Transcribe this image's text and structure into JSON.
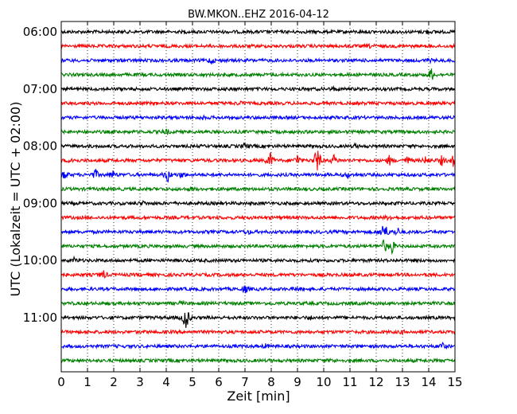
{
  "chart_data": {
    "type": "line",
    "title": "BW.MKON..EHZ 2016-04-12",
    "xlabel": "Zeit  [min]",
    "ylabel": "UTC (Lokalzeit = UTC + 02:00)",
    "xlim": [
      0,
      15
    ],
    "x_ticks": [
      "0",
      "1",
      "2",
      "3",
      "4",
      "5",
      "6",
      "7",
      "8",
      "9",
      "10",
      "11",
      "12",
      "13",
      "14",
      "15"
    ],
    "y_tick_labels": [
      "06:00",
      "07:00",
      "08:00",
      "09:00",
      "10:00",
      "11:00"
    ],
    "grid": "vertical dotted",
    "trace_interval_minutes": 15,
    "trace_color_cycle": [
      "#000000",
      "#ff0000",
      "#0000ff",
      "#008000"
    ],
    "series": [
      {
        "start": "06:00",
        "events": [
          {
            "t": 13.9,
            "amp": 0.25
          }
        ]
      },
      {
        "start": "06:15",
        "events": [
          {
            "t": 11.8,
            "amp": 0.2
          }
        ]
      },
      {
        "start": "06:30",
        "events": [
          {
            "t": 5.7,
            "amp": 0.5
          },
          {
            "t": 14.0,
            "amp": 0.2
          }
        ]
      },
      {
        "start": "06:45",
        "events": [
          {
            "t": 14.1,
            "amp": 0.9
          }
        ]
      },
      {
        "start": "07:00",
        "events": [
          {
            "t": 10.4,
            "amp": 0.2
          }
        ]
      },
      {
        "start": "07:15",
        "events": [
          {
            "t": 6.8,
            "amp": 0.2
          }
        ]
      },
      {
        "start": "07:30",
        "events": [
          {
            "t": 5.4,
            "amp": 0.15
          }
        ]
      },
      {
        "start": "07:45",
        "events": [
          {
            "t": 4.0,
            "amp": 0.35
          }
        ]
      },
      {
        "start": "08:00",
        "events": [
          {
            "t": 7.0,
            "amp": 0.35
          },
          {
            "t": 11.2,
            "amp": 0.2
          }
        ]
      },
      {
        "start": "08:15",
        "events": [
          {
            "t": 0.4,
            "amp": 0.4
          },
          {
            "t": 7.95,
            "amp": 1.2
          },
          {
            "t": 9.0,
            "amp": 0.8
          },
          {
            "t": 9.75,
            "amp": 2.2
          },
          {
            "t": 10.4,
            "amp": 0.7
          },
          {
            "t": 12.5,
            "amp": 0.6
          },
          {
            "t": 13.2,
            "amp": 0.5
          },
          {
            "t": 13.9,
            "amp": 0.5
          },
          {
            "t": 14.5,
            "amp": 0.6
          },
          {
            "t": 14.95,
            "amp": 0.8
          }
        ]
      },
      {
        "start": "08:30",
        "events": [
          {
            "t": 0.1,
            "amp": 0.7
          },
          {
            "t": 1.3,
            "amp": 0.7
          },
          {
            "t": 1.95,
            "amp": 0.6
          },
          {
            "t": 4.05,
            "amp": 1.0
          },
          {
            "t": 4.6,
            "amp": 0.4
          },
          {
            "t": 10.9,
            "amp": 0.4
          }
        ]
      },
      {
        "start": "08:45",
        "events": [
          {
            "t": 5.0,
            "amp": 0.2
          }
        ]
      },
      {
        "start": "09:00",
        "events": [
          {
            "t": 3.1,
            "amp": 0.25
          }
        ]
      },
      {
        "start": "09:15",
        "events": [
          {
            "t": 12.5,
            "amp": 0.3
          }
        ]
      },
      {
        "start": "09:30",
        "events": [
          {
            "t": 7.1,
            "amp": 0.3
          },
          {
            "t": 12.3,
            "amp": 1.8
          },
          {
            "t": 12.8,
            "amp": 0.6
          }
        ]
      },
      {
        "start": "09:45",
        "events": [
          {
            "t": 12.3,
            "amp": 0.9
          },
          {
            "t": 12.6,
            "amp": 0.9
          }
        ]
      },
      {
        "start": "10:00",
        "events": [
          {
            "t": 0.5,
            "amp": 0.3
          }
        ]
      },
      {
        "start": "10:15",
        "events": [
          {
            "t": 1.6,
            "amp": 0.6
          }
        ]
      },
      {
        "start": "10:30",
        "events": [
          {
            "t": 7.0,
            "amp": 0.6
          },
          {
            "t": 9.0,
            "amp": 0.2
          }
        ]
      },
      {
        "start": "10:45",
        "events": [
          {
            "t": 4.6,
            "amp": 0.2
          }
        ]
      },
      {
        "start": "11:00",
        "events": [
          {
            "t": 4.75,
            "amp": 2.0
          },
          {
            "t": 9.5,
            "amp": 0.2
          }
        ]
      },
      {
        "start": "11:15",
        "events": [
          {
            "t": 13.0,
            "amp": 0.15
          }
        ]
      },
      {
        "start": "11:30",
        "events": [
          {
            "t": 7.8,
            "amp": 0.25
          },
          {
            "t": 14.5,
            "amp": 0.5
          }
        ]
      },
      {
        "start": "11:45",
        "events": [
          {
            "t": 10.3,
            "amp": 0.15
          }
        ]
      }
    ]
  }
}
